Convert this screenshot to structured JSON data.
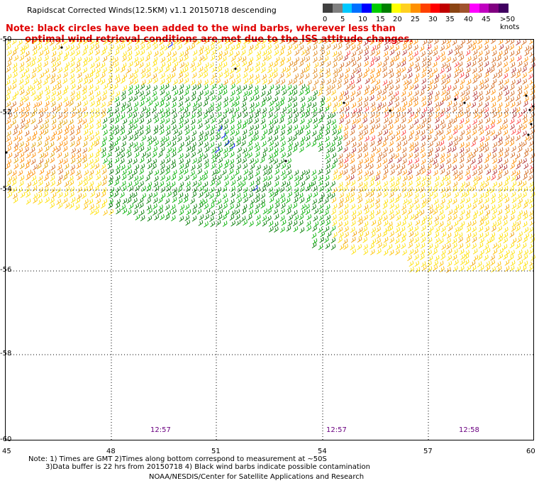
{
  "title": "Rapidscat Corrected Winds(12.5KM) v1.1 20150718 descending",
  "note_lines": [
    "Note: black circles have been added to the wind barbs, wherever less than",
    "      optimal wind retrieval conditions are met due to the ISS attitude changes."
  ],
  "colorbar": {
    "colors": [
      "#404040",
      "#808080",
      "#00c8ff",
      "#0070ff",
      "#0000ff",
      "#00cc00",
      "#008000",
      "#ffff00",
      "#ffd020",
      "#ff9000",
      "#ff4000",
      "#ff0000",
      "#c00000",
      "#8b4513",
      "#a0522d",
      "#ff00ff",
      "#c000c0",
      "#800080",
      "#400060"
    ],
    "labels": [
      "0",
      "5",
      "10",
      "15",
      "20",
      "25",
      "30",
      "35",
      "40",
      "45",
      ">50 knots"
    ]
  },
  "map": {
    "lon_ticks": [
      "45",
      "48",
      "51",
      "54",
      "57",
      "60"
    ],
    "lat_ticks": [
      "-50",
      "-52",
      "-54",
      "-56",
      "-58",
      "-60"
    ],
    "lon_range": [
      45,
      60
    ],
    "lat_range": [
      -60,
      -50
    ],
    "pass_times": [
      "12:57",
      "12:57",
      "12:58"
    ]
  },
  "footer": {
    "line1": "Note: 1) Times are GMT 2)Times along bottom correspond to measurement at ~50S",
    "line2": "3)Data buffer is 22 hrs from 20150718 4) Black wind barbs indicate possible contamination",
    "line3": "NOAA/NESDIS/Center for Satellite Applications and Research"
  }
}
